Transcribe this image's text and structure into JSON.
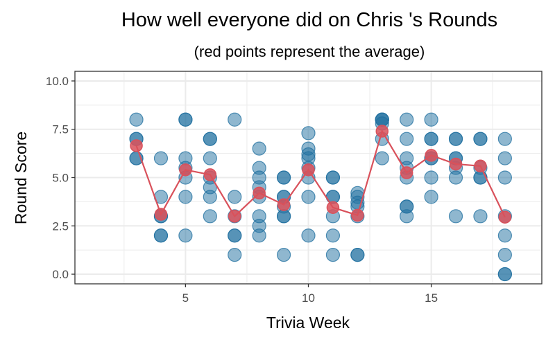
{
  "chart_data": {
    "type": "scatter",
    "title": "How well everyone did on Chris 's Rounds",
    "subtitle": "(red points represent the average)",
    "xlabel": "Trivia Week",
    "ylabel": "Round Score",
    "xlim": [
      0.5,
      19.5
    ],
    "ylim": [
      -0.5,
      10.5
    ],
    "x_ticks": [
      5,
      10,
      15
    ],
    "y_ticks": [
      0.0,
      2.5,
      5.0,
      7.5,
      10.0
    ],
    "y_tick_labels": [
      "0.0",
      "2.5",
      "5.0",
      "7.5",
      "10.0"
    ],
    "grid": true,
    "colors": {
      "points": "#1f6f9f",
      "average": "#d9515b",
      "grid": "#ebebeb",
      "panel_border": "#333333"
    },
    "series": [
      {
        "type": "scatter",
        "points": [
          {
            "x": 3,
            "y": 8
          },
          {
            "x": 3,
            "y": 7
          },
          {
            "x": 3,
            "y": 6
          },
          {
            "x": 3,
            "y": 6
          },
          {
            "x": 3,
            "y": 7
          },
          {
            "x": 4,
            "y": 6
          },
          {
            "x": 4,
            "y": 4
          },
          {
            "x": 4,
            "y": 3
          },
          {
            "x": 4,
            "y": 3
          },
          {
            "x": 4,
            "y": 2
          },
          {
            "x": 4,
            "y": 2
          },
          {
            "x": 5,
            "y": 8
          },
          {
            "x": 5,
            "y": 8
          },
          {
            "x": 5,
            "y": 6
          },
          {
            "x": 5,
            "y": 5.5
          },
          {
            "x": 5,
            "y": 5
          },
          {
            "x": 5,
            "y": 4
          },
          {
            "x": 5,
            "y": 2
          },
          {
            "x": 6,
            "y": 7
          },
          {
            "x": 6,
            "y": 7
          },
          {
            "x": 6,
            "y": 6
          },
          {
            "x": 6,
            "y": 5
          },
          {
            "x": 6,
            "y": 4.5
          },
          {
            "x": 6,
            "y": 4
          },
          {
            "x": 6,
            "y": 3
          },
          {
            "x": 7,
            "y": 8
          },
          {
            "x": 7,
            "y": 4
          },
          {
            "x": 7,
            "y": 3
          },
          {
            "x": 7,
            "y": 2
          },
          {
            "x": 7,
            "y": 2
          },
          {
            "x": 7,
            "y": 1
          },
          {
            "x": 8,
            "y": 6.5
          },
          {
            "x": 8,
            "y": 5.5
          },
          {
            "x": 8,
            "y": 5
          },
          {
            "x": 8,
            "y": 4.5
          },
          {
            "x": 8,
            "y": 4
          },
          {
            "x": 8,
            "y": 3
          },
          {
            "x": 8,
            "y": 2.5
          },
          {
            "x": 8,
            "y": 2
          },
          {
            "x": 9,
            "y": 5
          },
          {
            "x": 9,
            "y": 5
          },
          {
            "x": 9,
            "y": 4
          },
          {
            "x": 9,
            "y": 4
          },
          {
            "x": 9,
            "y": 3.5
          },
          {
            "x": 9,
            "y": 3
          },
          {
            "x": 9,
            "y": 3
          },
          {
            "x": 9,
            "y": 1
          },
          {
            "x": 10,
            "y": 7.3
          },
          {
            "x": 10,
            "y": 6.5
          },
          {
            "x": 10,
            "y": 6.2
          },
          {
            "x": 10,
            "y": 6
          },
          {
            "x": 10,
            "y": 5.5
          },
          {
            "x": 10,
            "y": 5
          },
          {
            "x": 10,
            "y": 4
          },
          {
            "x": 10,
            "y": 2
          },
          {
            "x": 11,
            "y": 5
          },
          {
            "x": 11,
            "y": 5
          },
          {
            "x": 11,
            "y": 4
          },
          {
            "x": 11,
            "y": 4
          },
          {
            "x": 11,
            "y": 3
          },
          {
            "x": 11,
            "y": 2
          },
          {
            "x": 11,
            "y": 1
          },
          {
            "x": 12,
            "y": 4.2
          },
          {
            "x": 12,
            "y": 4
          },
          {
            "x": 12,
            "y": 3.7
          },
          {
            "x": 12,
            "y": 3.5
          },
          {
            "x": 12,
            "y": 3
          },
          {
            "x": 12,
            "y": 1
          },
          {
            "x": 12,
            "y": 1
          },
          {
            "x": 13,
            "y": 8
          },
          {
            "x": 13,
            "y": 8
          },
          {
            "x": 13,
            "y": 8
          },
          {
            "x": 13,
            "y": 7.8
          },
          {
            "x": 13,
            "y": 7
          },
          {
            "x": 13,
            "y": 6
          },
          {
            "x": 14,
            "y": 8
          },
          {
            "x": 14,
            "y": 7
          },
          {
            "x": 14,
            "y": 6
          },
          {
            "x": 14,
            "y": 5.5
          },
          {
            "x": 14,
            "y": 5
          },
          {
            "x": 14,
            "y": 3.5
          },
          {
            "x": 14,
            "y": 3.5
          },
          {
            "x": 14,
            "y": 3
          },
          {
            "x": 15,
            "y": 8
          },
          {
            "x": 15,
            "y": 7
          },
          {
            "x": 15,
            "y": 7
          },
          {
            "x": 15,
            "y": 6
          },
          {
            "x": 15,
            "y": 6
          },
          {
            "x": 15,
            "y": 5
          },
          {
            "x": 15,
            "y": 4
          },
          {
            "x": 16,
            "y": 7
          },
          {
            "x": 16,
            "y": 7
          },
          {
            "x": 16,
            "y": 6
          },
          {
            "x": 16,
            "y": 6
          },
          {
            "x": 16,
            "y": 5.5
          },
          {
            "x": 16,
            "y": 5
          },
          {
            "x": 16,
            "y": 3
          },
          {
            "x": 17,
            "y": 7
          },
          {
            "x": 17,
            "y": 7
          },
          {
            "x": 17,
            "y": 5.5
          },
          {
            "x": 17,
            "y": 5
          },
          {
            "x": 17,
            "y": 5
          },
          {
            "x": 17,
            "y": 3
          },
          {
            "x": 18,
            "y": 7
          },
          {
            "x": 18,
            "y": 6
          },
          {
            "x": 18,
            "y": 5
          },
          {
            "x": 18,
            "y": 3
          },
          {
            "x": 18,
            "y": 2
          },
          {
            "x": 18,
            "y": 1
          },
          {
            "x": 18,
            "y": 0
          },
          {
            "x": 18,
            "y": 0
          }
        ]
      },
      {
        "type": "line",
        "x": [
          3,
          4,
          5,
          6,
          7,
          8,
          9,
          10,
          11,
          12,
          13,
          14,
          15,
          16,
          17,
          18
        ],
        "y": [
          6.65,
          3.1,
          5.4,
          5.15,
          3.0,
          4.2,
          3.6,
          5.4,
          3.45,
          3.05,
          7.4,
          5.25,
          6.15,
          5.7,
          5.6,
          2.95
        ]
      }
    ]
  }
}
